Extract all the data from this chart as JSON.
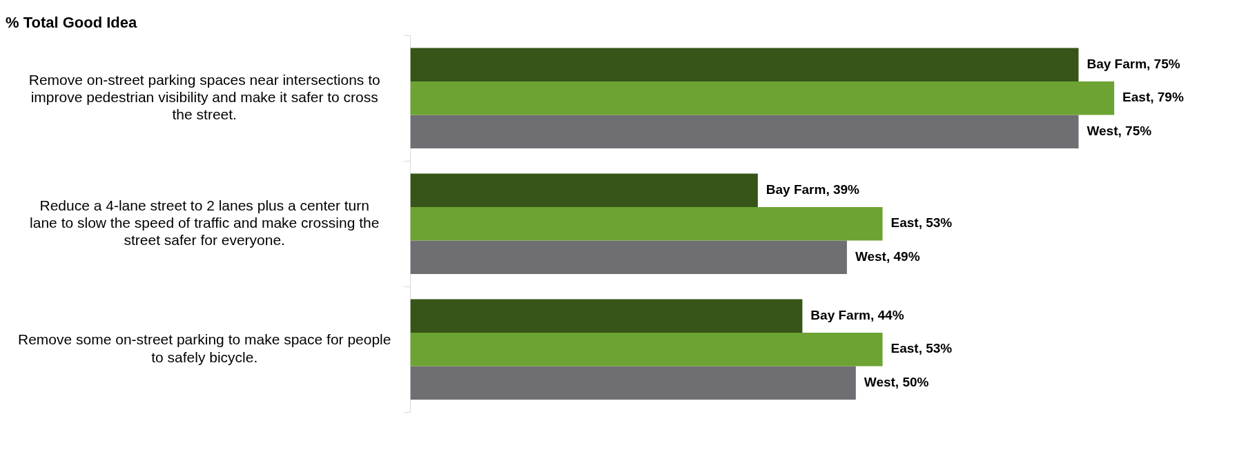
{
  "chart_data": {
    "type": "bar",
    "orientation": "horizontal",
    "title": "% Total Good Idea",
    "categories": [
      "Remove on-street parking spaces near intersections to improve pedestrian visibility and make it safer to cross the street.",
      "Reduce a 4-lane street to 2 lanes plus a center turn lane to slow the speed of traffic and make crossing the street safer for everyone.",
      "Remove some on-street parking to make space for people to safely bicycle."
    ],
    "series": [
      {
        "color": "#375419",
        "values": [
          75,
          39,
          44
        ],
        "value_labels": [
          "Bay Farm, 75%",
          "Bay Farm, 39%",
          "Bay Farm, 44%"
        ]
      },
      {
        "color": "#6ca332",
        "values": [
          79,
          53,
          53
        ],
        "value_labels": [
          "East, 79%",
          "East, 53%",
          "East, 53%"
        ]
      },
      {
        "color": "#6f6e72",
        "values": [
          75,
          49,
          50
        ],
        "value_labels": [
          "West, 75%",
          "West, 49%",
          "West, 50%"
        ]
      }
    ],
    "legend": false
  }
}
